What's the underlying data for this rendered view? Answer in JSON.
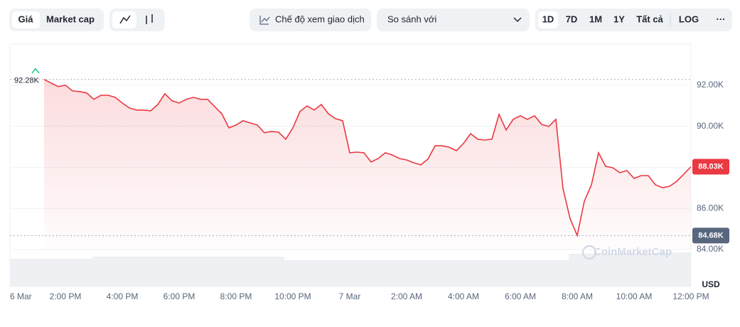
{
  "toolbar": {
    "tabs": [
      "Giá",
      "Market cap"
    ],
    "view_mode": "Chế độ xem giao dịch",
    "compare": "So sánh với",
    "ranges": [
      "1D",
      "7D",
      "1M",
      "1Y",
      "Tất cả"
    ],
    "log": "LOG",
    "more": "···"
  },
  "chart_data": {
    "type": "line",
    "watermark": "CoinMarketCap",
    "currency": "USD",
    "x_labels": [
      "6 Mar",
      "2:00 PM",
      "4:00 PM",
      "6:00 PM",
      "8:00 PM",
      "10:00 PM",
      "7 Mar",
      "2:00 AM",
      "4:00 AM",
      "6:00 AM",
      "8:00 AM",
      "10:00 AM",
      "12:00 PM"
    ],
    "series": [
      {
        "name": "Giá",
        "color": "#ea3943",
        "values": [
          92280,
          92100,
          91930,
          92000,
          91720,
          91690,
          91620,
          91310,
          91510,
          91510,
          91410,
          91130,
          90890,
          90790,
          90790,
          90750,
          91060,
          91580,
          91240,
          91130,
          91310,
          91410,
          91310,
          91310,
          90960,
          90610,
          89920,
          90060,
          90270,
          90160,
          90060,
          89680,
          89750,
          89710,
          89370,
          89920,
          90720,
          90990,
          90790,
          91060,
          90610,
          90370,
          90270,
          88710,
          88740,
          88710,
          88260,
          88430,
          88710,
          88600,
          88430,
          88360,
          88220,
          88120,
          88400,
          89050,
          89050,
          88980,
          88810,
          89160,
          89640,
          89370,
          89330,
          89370,
          90580,
          89820,
          90340,
          90510,
          90340,
          90510,
          90090,
          89990,
          90340,
          86970,
          85500,
          84680,
          86350,
          87150,
          88710,
          88050,
          87980,
          87740,
          87840,
          87460,
          87600,
          87600,
          87150,
          87010,
          87080,
          87320,
          87670,
          88030
        ]
      }
    ],
    "ylim": [
      84000,
      94000
    ],
    "yticks": [
      {
        "value": 84000,
        "label": "84.00K"
      },
      {
        "value": 86000,
        "label": "86.00K"
      },
      {
        "value": 88000,
        "label": "88.00K"
      },
      {
        "value": 90000,
        "label": "90.00K"
      },
      {
        "value": 92000,
        "label": "92.00K"
      }
    ],
    "grid": true,
    "price_labels": {
      "high": {
        "value": 92280,
        "label": "92.28K"
      },
      "low": {
        "value": 84680,
        "label": "84.68K"
      },
      "current": {
        "value": 88030,
        "label": "88.03K"
      }
    }
  }
}
